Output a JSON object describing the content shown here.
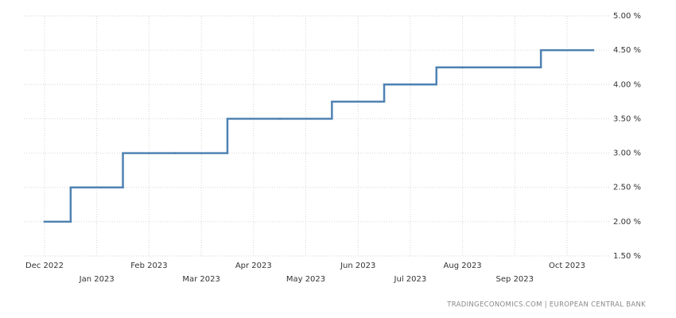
{
  "chart_data": {
    "type": "line",
    "step": true,
    "categories": [
      "Dec 2022",
      "Jan 2023",
      "Feb 2023",
      "Mar 2023",
      "Apr 2023",
      "May 2023",
      "Jun 2023",
      "Jul 2023",
      "Aug 2023",
      "Sep 2023",
      "Oct 2023"
    ],
    "values": [
      2.0,
      2.5,
      3.0,
      3.0,
      3.5,
      3.5,
      3.75,
      4.0,
      4.25,
      4.25,
      4.5
    ],
    "color": "#4f82b3",
    "ylim": [
      1.5,
      5.0
    ],
    "yticks": [
      {
        "value": 1.5,
        "label": "1.50 %"
      },
      {
        "value": 2.0,
        "label": "2.00 %"
      },
      {
        "value": 2.5,
        "label": "2.50 %"
      },
      {
        "value": 3.0,
        "label": "3.00 %"
      },
      {
        "value": 3.5,
        "label": "3.50 %"
      },
      {
        "value": 4.0,
        "label": "4.00 %"
      },
      {
        "value": 4.5,
        "label": "4.50 %"
      },
      {
        "value": 5.0,
        "label": "5.00 %"
      }
    ],
    "grid": true,
    "source": "TRADINGECONOMICS.COM  |  EUROPEAN CENTRAL BANK"
  }
}
